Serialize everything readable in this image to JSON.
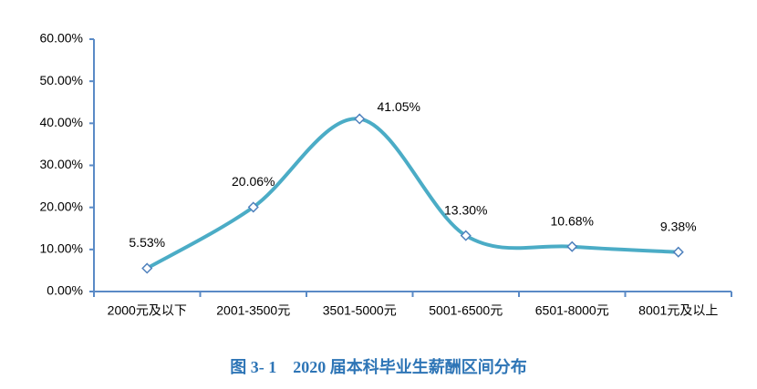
{
  "chart_data": {
    "type": "line",
    "title": "图 3- 1　2020 届本科毕业生薪酬区间分布",
    "categories": [
      "2000元及以下",
      "2001-3500元",
      "3501-5000元",
      "5001-6500元",
      "6501-8000元",
      "8001元及以上"
    ],
    "values": [
      5.53,
      20.06,
      41.05,
      13.3,
      10.68,
      9.38
    ],
    "value_labels": [
      "5.53%",
      "20.06%",
      "41.05%",
      "13.30%",
      "10.68%",
      "9.38%"
    ],
    "color": "#4bacc6",
    "marker_color": "#4f81bd",
    "smooth": true,
    "ylim": [
      0,
      60
    ],
    "yticks": [
      {
        "value": 0,
        "label": "0.00%"
      },
      {
        "value": 10,
        "label": "10.00%"
      },
      {
        "value": 20,
        "label": "20.00%"
      },
      {
        "value": 30,
        "label": "30.00%"
      },
      {
        "value": 40,
        "label": "40.00%"
      },
      {
        "value": 50,
        "label": "50.00%"
      },
      {
        "value": 60,
        "label": "60.00%"
      }
    ]
  }
}
